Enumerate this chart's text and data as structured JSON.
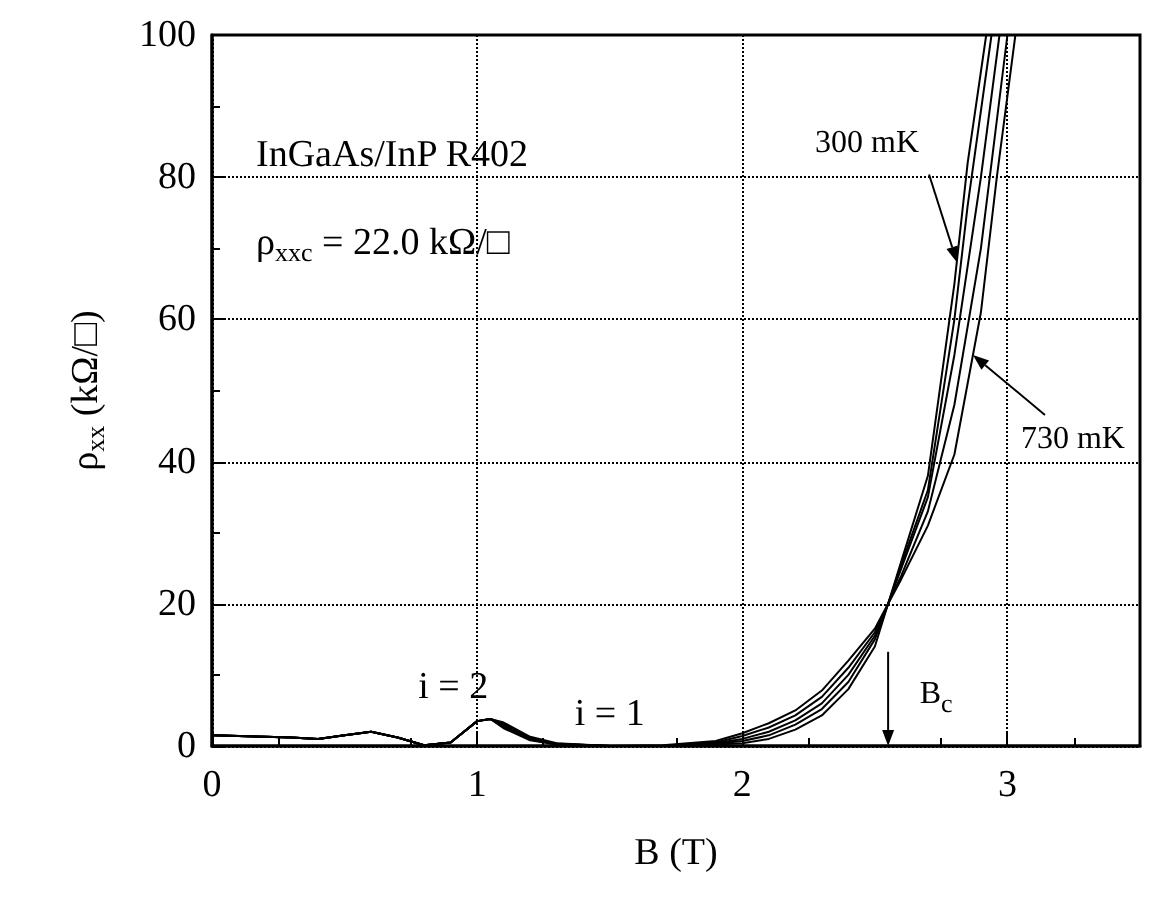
{
  "chart_data": {
    "type": "line",
    "xlabel": "B (T)",
    "ylabel": "ρ$_{xx}$ (kΩ/□)",
    "xlim": [
      0,
      3.5
    ],
    "xticks": [
      0,
      1,
      2,
      3
    ],
    "ylim": [
      0,
      100
    ],
    "yticks": [
      0,
      20,
      40,
      60,
      80,
      100
    ],
    "grid": true,
    "marker": "none",
    "line_style": "solid",
    "series": [
      {
        "color": "#000000",
        "x": [
          0,
          0.1,
          0.2,
          0.3,
          0.4,
          0.5,
          0.6,
          0.7,
          0.8,
          0.9,
          1.0,
          1.05,
          1.1,
          1.2,
          1.3,
          1.5,
          1.7,
          1.9,
          2.0,
          2.1,
          2.2,
          2.3,
          2.4,
          2.5,
          2.55,
          2.6,
          2.7,
          2.8,
          2.85,
          2.92
        ],
        "values": [
          1.5,
          1.4,
          1.3,
          1.2,
          1.0,
          1.5,
          2.0,
          1.2,
          0.1,
          0.5,
          3.5,
          3.8,
          2.5,
          0.8,
          0.2,
          0,
          0,
          0.2,
          0.4,
          1.0,
          2.3,
          4.3,
          8,
          14,
          20,
          26,
          38,
          65,
          82,
          100
        ]
      },
      {
        "color": "#000000",
        "x": [
          0,
          0.1,
          0.2,
          0.3,
          0.4,
          0.5,
          0.6,
          0.7,
          0.8,
          0.9,
          1.0,
          1.05,
          1.1,
          1.2,
          1.3,
          1.5,
          1.7,
          1.9,
          2.0,
          2.1,
          2.2,
          2.3,
          2.4,
          2.5,
          2.55,
          2.6,
          2.7,
          2.8,
          2.85,
          2.94
        ],
        "values": [
          1.5,
          1.4,
          1.3,
          1.2,
          1.0,
          1.5,
          2.0,
          1.2,
          0.1,
          0.5,
          3.5,
          3.8,
          2.7,
          0.9,
          0.2,
          0,
          0,
          0.3,
          0.7,
          1.5,
          3.0,
          5.2,
          9,
          15,
          20,
          25.5,
          36,
          60,
          76,
          100
        ]
      },
      {
        "color": "#000000",
        "x": [
          0,
          0.1,
          0.2,
          0.3,
          0.4,
          0.5,
          0.6,
          0.7,
          0.8,
          0.9,
          1.0,
          1.05,
          1.1,
          1.2,
          1.3,
          1.5,
          1.7,
          1.9,
          2.0,
          2.1,
          2.2,
          2.3,
          2.4,
          2.5,
          2.55,
          2.6,
          2.7,
          2.8,
          2.9,
          2.97
        ],
        "values": [
          1.5,
          1.4,
          1.3,
          1.2,
          1.0,
          1.5,
          2.0,
          1.2,
          0.1,
          0.5,
          3.5,
          3.8,
          2.9,
          1.0,
          0.3,
          0,
          0,
          0.4,
          1.0,
          2.0,
          3.6,
          6.0,
          10,
          15.5,
          20,
          25,
          35,
          55,
          80,
          100
        ]
      },
      {
        "color": "#000000",
        "x": [
          0,
          0.1,
          0.2,
          0.3,
          0.4,
          0.5,
          0.6,
          0.7,
          0.8,
          0.9,
          1.0,
          1.05,
          1.1,
          1.2,
          1.3,
          1.5,
          1.7,
          1.9,
          2.0,
          2.1,
          2.2,
          2.3,
          2.4,
          2.5,
          2.55,
          2.6,
          2.7,
          2.8,
          2.9,
          3.0
        ],
        "values": [
          1.5,
          1.4,
          1.3,
          1.2,
          1.0,
          1.5,
          2.0,
          1.2,
          0.1,
          0.5,
          3.5,
          3.8,
          3.1,
          1.1,
          0.3,
          0,
          0,
          0.5,
          1.4,
          2.6,
          4.3,
          6.9,
          11,
          16,
          20,
          24,
          33,
          48,
          70,
          100
        ]
      },
      {
        "color": "#000000",
        "x": [
          0,
          0.1,
          0.2,
          0.3,
          0.4,
          0.5,
          0.6,
          0.7,
          0.8,
          0.9,
          1.0,
          1.05,
          1.1,
          1.2,
          1.3,
          1.5,
          1.7,
          1.9,
          2.0,
          2.1,
          2.2,
          2.3,
          2.4,
          2.5,
          2.55,
          2.6,
          2.7,
          2.8,
          2.9,
          2.96,
          3.03
        ],
        "values": [
          1.5,
          1.4,
          1.3,
          1.2,
          1.0,
          1.5,
          2.0,
          1.2,
          0.1,
          0.5,
          3.5,
          3.8,
          3.3,
          1.3,
          0.4,
          0,
          0.1,
          0.7,
          1.8,
          3.2,
          5,
          7.8,
          12,
          16.5,
          20,
          23.5,
          31,
          41,
          61,
          80,
          100
        ]
      }
    ],
    "annotations": [
      "InGaAs/InP R402",
      "ρ$_{xxc}$ = 22.0 kΩ/□",
      {
        "text": "i = 2",
        "x": 1.0,
        "y": 3.8
      },
      {
        "text": "i = 1",
        "x": 1.5,
        "y": 0
      },
      {
        "text": "300 mK",
        "x": 2.81,
        "y": 68
      },
      {
        "text": "730 mK",
        "x": 2.87,
        "y": 55
      },
      {
        "text": "B$_{c}$",
        "x": 2.55,
        "y": 20
      }
    ]
  }
}
